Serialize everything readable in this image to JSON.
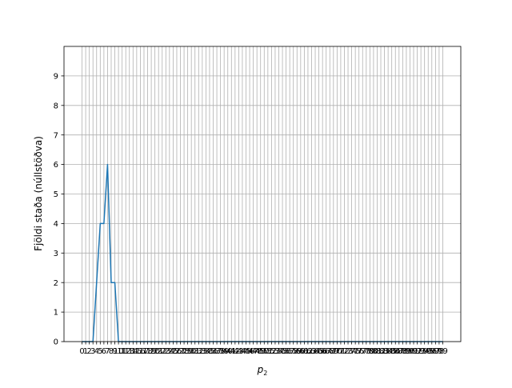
{
  "chart_data": {
    "type": "line",
    "xlabel": "p",
    "xlabel_sub": "2",
    "ylabel": "Fjöldi staða (núllstöðva)",
    "xlim": [
      -4.95,
      103.95
    ],
    "ylim": [
      0,
      10
    ],
    "x_ticks": [
      0,
      1,
      2,
      3,
      4,
      5,
      6,
      7,
      8,
      9,
      10,
      11,
      12,
      13,
      14,
      15,
      16,
      17,
      18,
      19,
      20,
      21,
      22,
      23,
      24,
      25,
      26,
      27,
      28,
      29,
      30,
      31,
      32,
      33,
      34,
      35,
      36,
      37,
      38,
      39,
      40,
      41,
      42,
      43,
      44,
      45,
      46,
      47,
      48,
      49,
      50,
      51,
      52,
      53,
      54,
      55,
      56,
      57,
      58,
      59,
      60,
      61,
      62,
      63,
      64,
      65,
      66,
      67,
      68,
      69,
      70,
      71,
      72,
      73,
      74,
      75,
      76,
      77,
      78,
      79,
      80,
      81,
      82,
      83,
      84,
      85,
      86,
      87,
      88,
      89,
      90,
      91,
      92,
      93,
      94,
      95,
      96,
      97,
      98,
      99
    ],
    "y_ticks": [
      0,
      1,
      2,
      3,
      4,
      5,
      6,
      7,
      8,
      9
    ],
    "grid": true,
    "colors": {
      "line": "#1f77b4",
      "grid": "#b0b0b0",
      "axes": "#000000"
    },
    "series": [
      {
        "x": [
          0,
          1,
          2,
          3,
          4,
          5,
          6,
          7,
          8,
          9,
          10,
          11,
          12,
          13,
          14,
          15,
          16,
          17,
          18,
          19,
          20,
          21,
          22,
          23,
          24,
          25,
          26,
          27,
          28,
          29,
          30,
          31,
          32,
          33,
          34,
          35,
          36,
          37,
          38,
          39,
          40,
          41,
          42,
          43,
          44,
          45,
          46,
          47,
          48,
          49,
          50,
          51,
          52,
          53,
          54,
          55,
          56,
          57,
          58,
          59,
          60,
          61,
          62,
          63,
          64,
          65,
          66,
          67,
          68,
          69,
          70,
          71,
          72,
          73,
          74,
          75,
          76,
          77,
          78,
          79,
          80,
          81,
          82,
          83,
          84,
          85,
          86,
          87,
          88,
          89,
          90,
          91,
          92,
          93,
          94,
          95,
          96,
          97,
          98,
          99
        ],
        "values": [
          0,
          0,
          0,
          0,
          2,
          4,
          4,
          6,
          2,
          2,
          0,
          0,
          0,
          0,
          0,
          0,
          0,
          0,
          0,
          0,
          0,
          0,
          0,
          0,
          0,
          0,
          0,
          0,
          0,
          0,
          0,
          0,
          0,
          0,
          0,
          0,
          0,
          0,
          0,
          0,
          0,
          0,
          0,
          0,
          0,
          0,
          0,
          0,
          0,
          0,
          0,
          0,
          0,
          0,
          0,
          0,
          0,
          0,
          0,
          0,
          0,
          0,
          0,
          0,
          0,
          0,
          0,
          0,
          0,
          0,
          0,
          0,
          0,
          0,
          0,
          0,
          0,
          0,
          0,
          0,
          0,
          0,
          0,
          0,
          0,
          0,
          0,
          0,
          0,
          0,
          0,
          0,
          0,
          0,
          0,
          0,
          0,
          0,
          0,
          0
        ]
      }
    ]
  }
}
